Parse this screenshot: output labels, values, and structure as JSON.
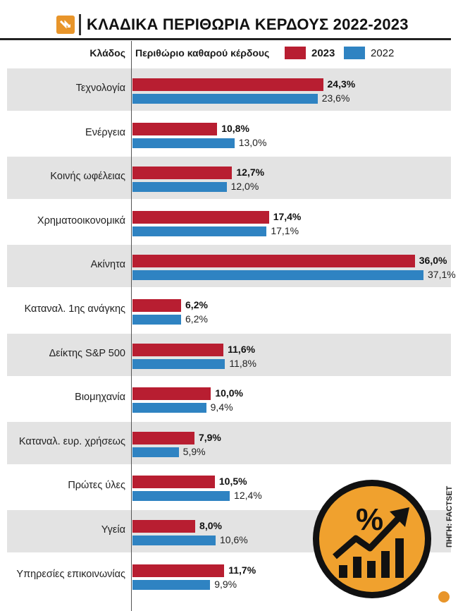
{
  "title": "ΚΛΑΔΙΚΑ ΠΕΡΙΘΩΡΙΑ ΚΕΡΔΟΥΣ 2022-2023",
  "header": {
    "sector_label": "Κλάδος",
    "margin_label": "Περιθώριο καθαρού κέρδους",
    "legend_2023": "2023",
    "legend_2022": "2022"
  },
  "source": "ΠΗΓΗ: FACTSET",
  "colors": {
    "y2023": "#b81e31",
    "y2022": "#2f83c2",
    "badge": "#f0a12e"
  },
  "chart_data": {
    "type": "bar",
    "title": "ΚΛΑΔΙΚΑ ΠΕΡΙΘΩΡΙΑ ΚΕΡΔΟΥΣ 2022-2023",
    "xlabel": "Περιθώριο καθαρού κέρδους",
    "ylabel": "Κλάδος",
    "orientation": "horizontal",
    "xlim": [
      0,
      40
    ],
    "categories": [
      "Τεχνολογία",
      "Ενέργεια",
      "Κοινής ωφέλειας",
      "Χρηματοοικονομικά",
      "Ακίνητα",
      "Καταναλ. 1ης ανάγκης",
      "Δείκτης S&P 500",
      "Βιομηχανία",
      "Καταναλ. ευρ. χρήσεως",
      "Πρώτες ύλες",
      "Υγεία",
      "Υπηρεσίες επικοινωνίας"
    ],
    "series": [
      {
        "name": "2023",
        "values": [
          24.3,
          10.8,
          12.7,
          17.4,
          36.0,
          6.2,
          11.6,
          10.0,
          7.9,
          10.5,
          8.0,
          11.7
        ],
        "labels": [
          "24,3%",
          "10,8%",
          "12,7%",
          "17,4%",
          "36,0%",
          "6,2%",
          "11,6%",
          "10,0%",
          "7,9%",
          "10,5%",
          "8,0%",
          "11,7%"
        ]
      },
      {
        "name": "2022",
        "values": [
          23.6,
          13.0,
          12.0,
          17.1,
          37.1,
          6.2,
          11.8,
          9.4,
          5.9,
          12.4,
          10.6,
          9.9
        ],
        "labels": [
          "23,6%",
          "13,0%",
          "12,0%",
          "17,1%",
          "37,1%",
          "6,2%",
          "11,8%",
          "9,4%",
          "5,9%",
          "12,4%",
          "10,6%",
          "9,9%"
        ]
      }
    ]
  }
}
